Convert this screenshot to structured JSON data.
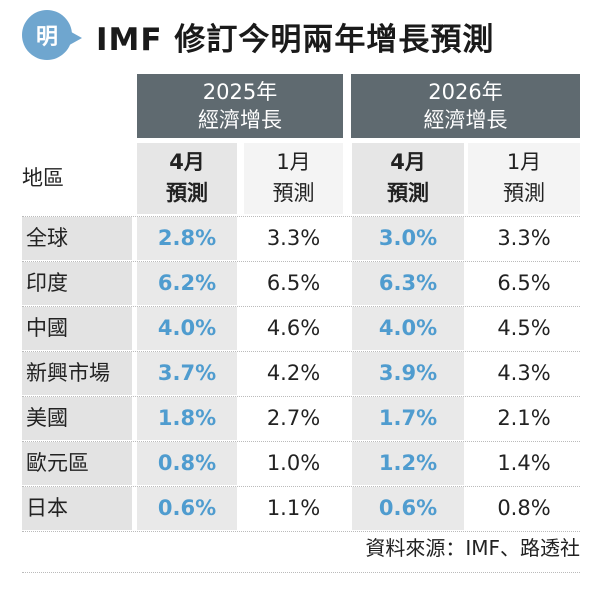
{
  "header": {
    "logo_char": "明",
    "title": "IMF 修訂今明兩年增長預測"
  },
  "table": {
    "year_groups": [
      {
        "year": "2025年",
        "label": "經濟增長"
      },
      {
        "year": "2026年",
        "label": "經濟增長"
      }
    ],
    "region_header": "地區",
    "sub_headers": [
      {
        "month": "4月",
        "label": "預測"
      },
      {
        "month": "1月",
        "label": "預測"
      },
      {
        "month": "4月",
        "label": "預測"
      },
      {
        "month": "1月",
        "label": "預測"
      }
    ],
    "rows": [
      {
        "region": "全球",
        "v2025_apr": "2.8%",
        "v2025_jan": "3.3%",
        "v2026_apr": "3.0%",
        "v2026_jan": "3.3%"
      },
      {
        "region": "印度",
        "v2025_apr": "6.2%",
        "v2025_jan": "6.5%",
        "v2026_apr": "6.3%",
        "v2026_jan": "6.5%"
      },
      {
        "region": "中國",
        "v2025_apr": "4.0%",
        "v2025_jan": "4.6%",
        "v2026_apr": "4.0%",
        "v2026_jan": "4.5%"
      },
      {
        "region": "新興市場",
        "v2025_apr": "3.7%",
        "v2025_jan": "4.2%",
        "v2026_apr": "3.9%",
        "v2026_jan": "4.3%"
      },
      {
        "region": "美國",
        "v2025_apr": "1.8%",
        "v2025_jan": "2.7%",
        "v2026_apr": "1.7%",
        "v2026_jan": "2.1%"
      },
      {
        "region": "歐元區",
        "v2025_apr": "0.8%",
        "v2025_jan": "1.0%",
        "v2026_apr": "1.2%",
        "v2026_jan": "1.4%"
      },
      {
        "region": "日本",
        "v2025_apr": "0.6%",
        "v2025_jan": "1.1%",
        "v2026_apr": "0.6%",
        "v2026_jan": "0.8%"
      }
    ]
  },
  "source": "資料來源：IMF、路透社",
  "colors": {
    "header_bg": "#5f6a70",
    "accent_blue": "#4f9ccf",
    "logo_blue": "#6fa6cf"
  }
}
